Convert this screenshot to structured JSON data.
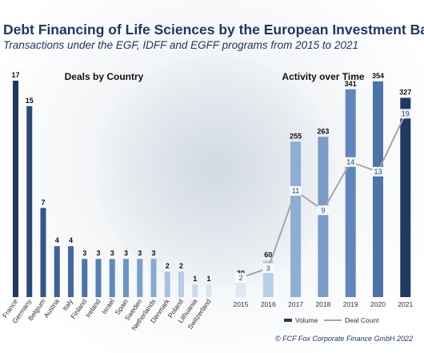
{
  "title": "Debt Financing of Life Sciences by the European Investment Bank",
  "subtitle": "Transactions under the EGF, IDFF and EGFF programs from 2015 to 2021",
  "copyright": "© FCF Fox Corporate Finance GmbH 2022",
  "chart_data": [
    {
      "type": "bar",
      "title": "Deals by Country",
      "categories": [
        "France",
        "Germany",
        "Belgium",
        "Austria",
        "Italy",
        "Finland",
        "Ireland",
        "Israel",
        "Spain",
        "Sweden",
        "Netherlands",
        "Denmark",
        "Poland",
        "Lithuania",
        "Switzerland"
      ],
      "values": [
        17,
        15,
        7,
        4,
        4,
        3,
        3,
        3,
        3,
        3,
        3,
        2,
        2,
        1,
        1
      ],
      "ylim": [
        0,
        17
      ],
      "colors": [
        "#1f3864",
        "#2a4a78",
        "#33578a",
        "#3a6296",
        "#416a9e",
        "#4a75a8",
        "#5580b1",
        "#618aba",
        "#6d95c2",
        "#799fca",
        "#86aad1",
        "#a7c1e0",
        "#b8cde7",
        "#cbdaee",
        "#d9e4f3"
      ]
    },
    {
      "type": "bar",
      "title": "Activity over Time",
      "categories": [
        "2015",
        "2016",
        "2017",
        "2018",
        "2019",
        "2020",
        "2021"
      ],
      "series": [
        {
          "name": "Volume",
          "values": [
            30,
            60,
            255,
            263,
            341,
            354,
            327
          ]
        },
        {
          "name": "Deal Count",
          "type": "line",
          "values": [
            2,
            3,
            11,
            9,
            14,
            13,
            19
          ]
        }
      ],
      "ylim": [
        0,
        380
      ],
      "count_ylim": [
        0,
        24
      ],
      "colors": [
        "#dfe8f4",
        "#b9cde6",
        "#8eaed3",
        "#7a9cc7",
        "#5f87bb",
        "#4a74aa",
        "#1f3864"
      ],
      "line_color": "#a6a6a6",
      "legend_position": "bottom"
    }
  ]
}
